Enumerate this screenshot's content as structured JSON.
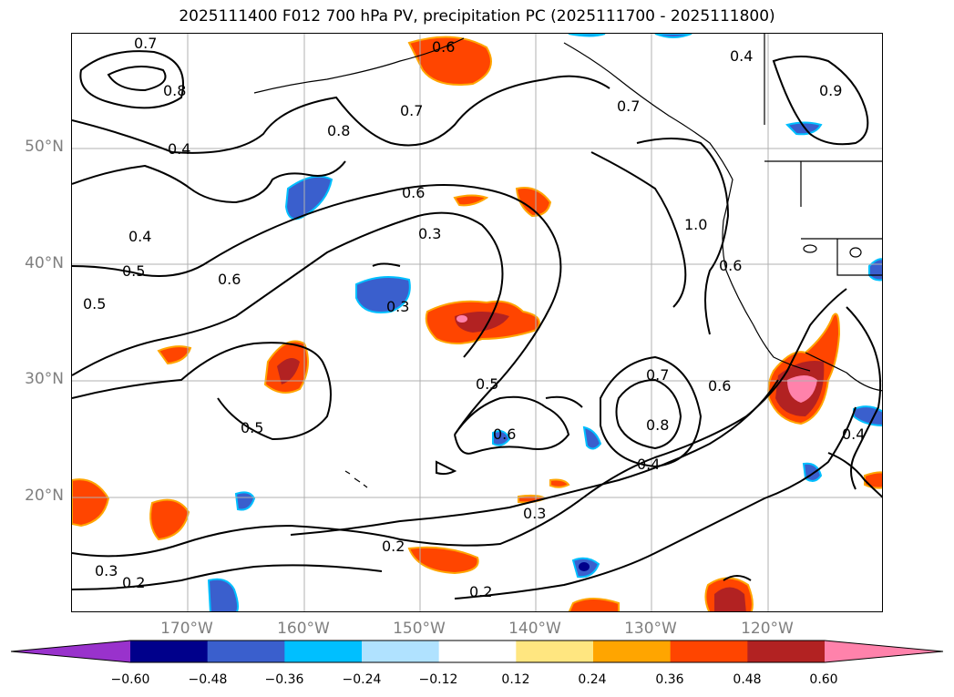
{
  "title": "2025111400 F012 700 hPa PV, precipitation PC (2025111700 - 2025111800)",
  "lat_labels": [
    "50°N",
    "40°N",
    "30°N",
    "20°N"
  ],
  "lon_labels": [
    "170°W",
    "160°W",
    "150°W",
    "140°W",
    "130°W",
    "120°W"
  ],
  "colorbar": {
    "ticks": [
      "−0.60",
      "−0.48",
      "−0.36",
      "−0.24",
      "−0.12",
      "0.12",
      "0.24",
      "0.36",
      "0.48",
      "0.60"
    ],
    "colors": [
      "#9932cc",
      "#00008b",
      "#3a5fcd",
      "#00bfff",
      "#b0e2ff",
      "#ffffff",
      "#ffe680",
      "#ffa500",
      "#ff4500",
      "#b22222",
      "#ff82ab"
    ]
  },
  "contour_labels": [
    "0.7",
    "0.6",
    "0.8",
    "0.7",
    "0.8",
    "0.4",
    "0.4",
    "0.5",
    "0.6",
    "0.3",
    "0.6",
    "0.3",
    "1.0",
    "0.4",
    "0.7",
    "0.5",
    "0.5",
    "0.6",
    "0.6",
    "0.7",
    "0.8",
    "0.4",
    "0.3",
    "0.2",
    "0.3",
    "0.2",
    "0.2",
    "0.5",
    "0.6",
    "0.9",
    "0.4"
  ]
}
